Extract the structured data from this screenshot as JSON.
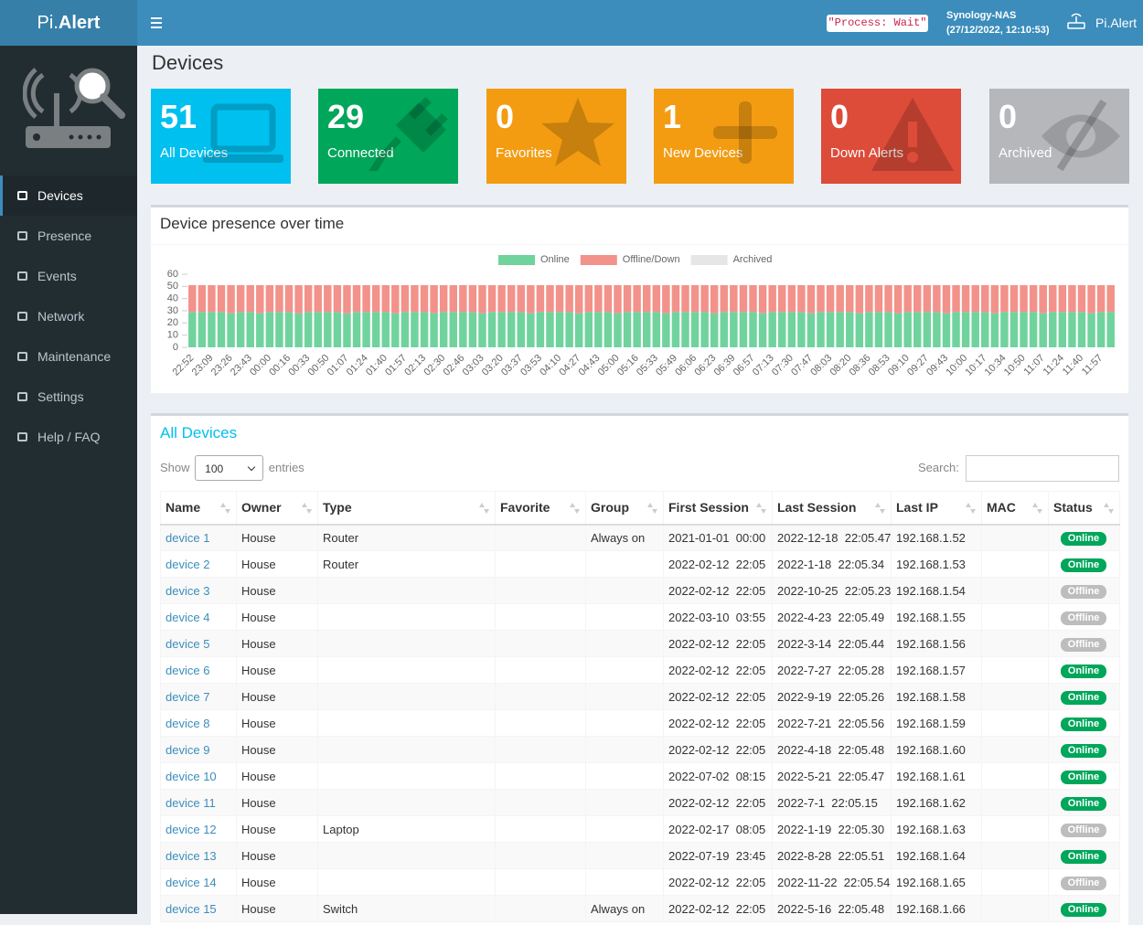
{
  "header": {
    "logo": {
      "prefix": "Pi.",
      "name": "Alert"
    },
    "process_status": "\"Process: Wait\"",
    "host": "Synology-NAS",
    "timestamp": "(27/12/2022, 12:10:53)",
    "user": "Pi.Alert"
  },
  "sidebar": {
    "items": [
      "Devices",
      "Presence",
      "Events",
      "Network",
      "Maintenance",
      "Settings",
      "Help / FAQ"
    ]
  },
  "page_title": "Devices",
  "stats": [
    {
      "value": 51,
      "label": "All Devices"
    },
    {
      "value": 29,
      "label": "Connected"
    },
    {
      "value": 0,
      "label": "Favorites"
    },
    {
      "value": 1,
      "label": "New Devices"
    },
    {
      "value": 0,
      "label": "Down Alerts"
    },
    {
      "value": 0,
      "label": "Archived"
    }
  ],
  "chart_data": {
    "type": "bar",
    "stacked": true,
    "title": "Device presence over time",
    "categories": [
      "22:52",
      null,
      "23:09",
      null,
      "23:26",
      null,
      "23:43",
      null,
      "00:00",
      null,
      "00:16",
      null,
      "00:33",
      null,
      "00:50",
      null,
      "01:07",
      null,
      "01:24",
      null,
      "01:40",
      null,
      "01:57",
      null,
      "02:13",
      null,
      "02:30",
      null,
      "02:46",
      null,
      "03:03",
      null,
      "03:20",
      null,
      "03:37",
      null,
      "03:53",
      null,
      "04:10",
      null,
      "04:27",
      null,
      "04:43",
      null,
      "05:00",
      null,
      "05:16",
      null,
      "05:33",
      null,
      "05:49",
      null,
      "06:06",
      null,
      "06:23",
      null,
      "06:39",
      null,
      "06:57",
      null,
      "07:13",
      null,
      "07:30",
      null,
      "07:47",
      null,
      "08:03",
      null,
      "08:20",
      null,
      "08:36",
      null,
      "08:53",
      null,
      "09:10",
      null,
      "09:27",
      null,
      "09:43",
      null,
      "10:00",
      null,
      "10:17",
      null,
      "10:34",
      null,
      "10:50",
      null,
      "11:07",
      null,
      "11:24",
      null,
      "11:40",
      null,
      "11:57",
      null
    ],
    "series": [
      {
        "name": "Online",
        "color": "#70d39d",
        "values": [
          29,
          29,
          29,
          29,
          28,
          29,
          29,
          28,
          29,
          29,
          29,
          28,
          29,
          29,
          29,
          29,
          28,
          29,
          29,
          29,
          29,
          28,
          29,
          29,
          29,
          28,
          29,
          29,
          29,
          29,
          28,
          29,
          29,
          29,
          29,
          28,
          29,
          29,
          29,
          29,
          28,
          29,
          29,
          29,
          28,
          29,
          29,
          29,
          29,
          28,
          29,
          29,
          29,
          29,
          28,
          29,
          29,
          29,
          29,
          28,
          29,
          29,
          29,
          29,
          28,
          29,
          29,
          29,
          29,
          28,
          29,
          29,
          29,
          28,
          29,
          29,
          29,
          29,
          28,
          29,
          29,
          29,
          29,
          28,
          29,
          29,
          29,
          29,
          28,
          29,
          29,
          29,
          29,
          28,
          29,
          29
        ]
      },
      {
        "name": "Offline/Down",
        "color": "#f2928a",
        "values": [
          22,
          22,
          22,
          22,
          23,
          22,
          22,
          23,
          22,
          22,
          22,
          23,
          22,
          22,
          22,
          22,
          23,
          22,
          22,
          22,
          22,
          23,
          22,
          22,
          22,
          23,
          22,
          22,
          22,
          22,
          23,
          22,
          22,
          22,
          22,
          23,
          22,
          22,
          22,
          22,
          23,
          22,
          22,
          22,
          23,
          22,
          22,
          22,
          22,
          23,
          22,
          22,
          22,
          22,
          23,
          22,
          22,
          22,
          22,
          23,
          22,
          22,
          22,
          22,
          23,
          22,
          22,
          22,
          22,
          23,
          22,
          22,
          22,
          23,
          22,
          22,
          22,
          22,
          23,
          22,
          22,
          22,
          22,
          23,
          22,
          22,
          22,
          22,
          23,
          22,
          22,
          22,
          22,
          23,
          22,
          22
        ]
      },
      {
        "name": "Archived",
        "color": "#e6e6e6",
        "values": [
          0,
          0,
          0,
          0,
          0,
          0,
          0,
          0,
          0,
          0,
          0,
          0,
          0,
          0,
          0,
          0,
          0,
          0,
          0,
          0,
          0,
          0,
          0,
          0,
          0,
          0,
          0,
          0,
          0,
          0,
          0,
          0,
          0,
          0,
          0,
          0,
          0,
          0,
          0,
          0,
          0,
          0,
          0,
          0,
          0,
          0,
          0,
          0,
          0,
          0,
          0,
          0,
          0,
          0,
          0,
          0,
          0,
          0,
          0,
          0,
          0,
          0,
          0,
          0,
          0,
          0,
          0,
          0,
          0,
          0,
          0,
          0,
          0,
          0,
          0,
          0,
          0,
          0,
          0,
          0,
          0,
          0,
          0,
          0,
          0,
          0,
          0,
          0,
          0,
          0,
          0,
          0,
          0,
          0,
          0,
          0
        ]
      }
    ],
    "ylim": [
      0,
      60
    ],
    "yticks": [
      0,
      10,
      20,
      30,
      40,
      50,
      60
    ],
    "grid": false,
    "legend": "top"
  },
  "table": {
    "title": "All Devices",
    "length": {
      "prefix": "Show",
      "value": "100",
      "suffix": "entries"
    },
    "search_label": "Search:",
    "columns": [
      "Name",
      "Owner",
      "Type",
      "Favorite",
      "Group",
      "First Session",
      "Last Session",
      "Last IP",
      "MAC",
      "Status"
    ],
    "rows": [
      [
        "device 1",
        "House",
        "Router",
        null,
        "Always on",
        "2021-01-01  00:00",
        "2022-12-18  22:05.47",
        "192.168.1.52",
        null,
        "Online"
      ],
      [
        "device 2",
        "House",
        "Router",
        null,
        null,
        "2022-02-12  22:05",
        "2022-1-18  22:05.34",
        "192.168.1.53",
        null,
        "Online"
      ],
      [
        "device 3",
        "House",
        null,
        null,
        null,
        "2022-02-12  22:05",
        "2022-10-25  22:05.23",
        "192.168.1.54",
        null,
        "Offline"
      ],
      [
        "device 4",
        "House",
        null,
        null,
        null,
        "2022-03-10  03:55",
        "2022-4-23  22:05.49",
        "192.168.1.55",
        null,
        "Offline"
      ],
      [
        "device 5",
        "House",
        null,
        null,
        null,
        "2022-02-12  22:05",
        "2022-3-14  22:05.44",
        "192.168.1.56",
        null,
        "Offline"
      ],
      [
        "device 6",
        "House",
        null,
        null,
        null,
        "2022-02-12  22:05",
        "2022-7-27  22:05.28",
        "192.168.1.57",
        null,
        "Online"
      ],
      [
        "device 7",
        "House",
        null,
        null,
        null,
        "2022-02-12  22:05",
        "2022-9-19  22:05.26",
        "192.168.1.58",
        null,
        "Online"
      ],
      [
        "device 8",
        "House",
        null,
        null,
        null,
        "2022-02-12  22:05",
        "2022-7-21  22:05.56",
        "192.168.1.59",
        null,
        "Online"
      ],
      [
        "device 9",
        "House",
        null,
        null,
        null,
        "2022-02-12  22:05",
        "2022-4-18  22:05.48",
        "192.168.1.60",
        null,
        "Online"
      ],
      [
        "device 10",
        "House",
        null,
        null,
        null,
        "2022-07-02  08:15",
        "2022-5-21  22:05.47",
        "192.168.1.61",
        null,
        "Online"
      ],
      [
        "device 11",
        "House",
        null,
        null,
        null,
        "2022-02-12  22:05",
        "2022-7-1  22:05.15",
        "192.168.1.62",
        null,
        "Online"
      ],
      [
        "device 12",
        "House",
        "Laptop",
        null,
        null,
        "2022-02-17  08:05",
        "2022-1-19  22:05.30",
        "192.168.1.63",
        null,
        "Offline"
      ],
      [
        "device 13",
        "House",
        null,
        null,
        null,
        "2022-07-19  23:45",
        "2022-8-28  22:05.51",
        "192.168.1.64",
        null,
        "Online"
      ],
      [
        "device 14",
        "House",
        null,
        null,
        null,
        "2022-02-12  22:05",
        "2022-11-22  22:05.54",
        "192.168.1.65",
        null,
        "Offline"
      ],
      [
        "device 15",
        "House",
        "Switch",
        null,
        "Always on",
        "2022-02-12  22:05",
        "2022-5-16  22:05.48",
        "192.168.1.66",
        null,
        "Online"
      ]
    ]
  }
}
